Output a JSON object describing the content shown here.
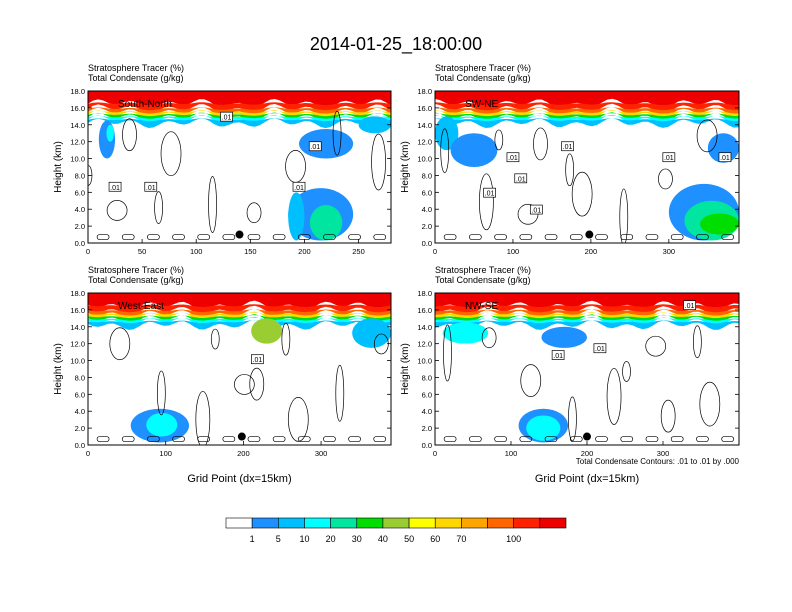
{
  "figure": {
    "title": "2014-01-25_18:00:00",
    "footnote": "Total Condensate Contours: .01 to .01 by .000"
  },
  "colorbar": {
    "colors": [
      "#ffffff",
      "#1e90ff",
      "#00bfff",
      "#00ffff",
      "#00e5a0",
      "#00dd00",
      "#9acd32",
      "#ffff00",
      "#ffd700",
      "#ffa500",
      "#ff6600",
      "#ff2200",
      "#ee0000"
    ],
    "labels": [
      "1",
      "5",
      "10",
      "20",
      "30",
      "40",
      "50",
      "60",
      "70",
      "100"
    ]
  },
  "chart_data": [
    {
      "type": "heatmap",
      "panel_label": "South-North",
      "subtitle_lines": [
        "Stratosphere Tracer   (%)",
        "Total Condensate   (g/kg)"
      ],
      "ylabel": "Height (km)",
      "xlabel": "",
      "xlim": [
        0,
        280
      ],
      "ylim": [
        0,
        18
      ],
      "x_ticks": [
        "0",
        "50",
        "100",
        "150",
        "200",
        "250"
      ],
      "x_tick_values": [
        0,
        50,
        100,
        150,
        200,
        250
      ],
      "y_ticks": [
        "0.0",
        "2.0",
        "4.0",
        "6.0",
        "8.0",
        "10.0",
        "12.0",
        "14.0",
        "16.0",
        "18.0"
      ],
      "contour_labels": [
        ".01",
        ".01",
        ".01",
        ".01",
        ".01"
      ],
      "contour_label_pos": [
        [
          128,
          14.9
        ],
        [
          25,
          6.6
        ],
        [
          58,
          6.6
        ],
        [
          210,
          11.4
        ],
        [
          195,
          6.6
        ]
      ],
      "marker_x": 140,
      "marker_y": 1.0,
      "tropopause_km": 14.6,
      "blobs": [
        {
          "x": [
            10,
            25
          ],
          "y": [
            10,
            14.5
          ],
          "level": 1
        },
        {
          "x": [
            17,
            24
          ],
          "y": [
            12,
            14
          ],
          "level": 3
        },
        {
          "x": [
            185,
            245
          ],
          "y": [
            0.3,
            6.5
          ],
          "level": 1
        },
        {
          "x": [
            205,
            235
          ],
          "y": [
            0.3,
            4.5
          ],
          "level": 4
        },
        {
          "x": [
            185,
            200
          ],
          "y": [
            0.3,
            6.0
          ],
          "level": 2
        },
        {
          "x": [
            195,
            245
          ],
          "y": [
            10,
            13.5
          ],
          "level": 1
        },
        {
          "x": [
            250,
            280
          ],
          "y": [
            13,
            15
          ],
          "level": 2
        }
      ]
    },
    {
      "type": "heatmap",
      "panel_label": "SW-NE",
      "subtitle_lines": [
        "Stratosphere Tracer   (%)",
        "Total Condensate   (g/kg)"
      ],
      "ylabel": "Height (km)",
      "xlabel": "",
      "xlim": [
        0,
        390
      ],
      "ylim": [
        0,
        18
      ],
      "x_ticks": [
        "0",
        "100",
        "200",
        "300"
      ],
      "x_tick_values": [
        0,
        100,
        200,
        300
      ],
      "y_ticks": [
        "0.0",
        "2.0",
        "4.0",
        "6.0",
        "8.0",
        "10.0",
        "12.0",
        "14.0",
        "16.0",
        "18.0"
      ],
      "contour_labels": [
        ".01",
        ".01",
        ".01",
        ".01",
        ".01",
        ".01",
        ".01"
      ],
      "contour_label_pos": [
        [
          100,
          10.1
        ],
        [
          170,
          11.4
        ],
        [
          300,
          10.1
        ],
        [
          372,
          10.1
        ],
        [
          110,
          7.6
        ],
        [
          70,
          5.9
        ],
        [
          130,
          3.9
        ]
      ],
      "marker_x": 198,
      "marker_y": 1.0,
      "tropopause_km": 14.6,
      "blobs": [
        {
          "x": [
            0,
            30
          ],
          "y": [
            11,
            15
          ],
          "level": 2
        },
        {
          "x": [
            20,
            80
          ],
          "y": [
            9,
            13
          ],
          "level": 1
        },
        {
          "x": [
            300,
            390
          ],
          "y": [
            0.3,
            7
          ],
          "level": 1
        },
        {
          "x": [
            320,
            390
          ],
          "y": [
            0.3,
            5
          ],
          "level": 4
        },
        {
          "x": [
            340,
            390
          ],
          "y": [
            1,
            3.5
          ],
          "level": 5
        },
        {
          "x": [
            350,
            390
          ],
          "y": [
            9.5,
            13
          ],
          "level": 1
        }
      ]
    },
    {
      "type": "heatmap",
      "panel_label": "West-East",
      "subtitle_lines": [
        "Stratosphere Tracer   (%)",
        "Total Condensate   (g/kg)"
      ],
      "ylabel": "Height (km)",
      "xlabel": "Grid Point (dx=15km)",
      "xlim": [
        0,
        390
      ],
      "ylim": [
        0,
        18
      ],
      "x_ticks": [
        "0",
        "100",
        "200",
        "300"
      ],
      "x_tick_values": [
        0,
        100,
        200,
        300
      ],
      "y_ticks": [
        "0.0",
        "2.0",
        "4.0",
        "6.0",
        "8.0",
        "10.0",
        "12.0",
        "14.0",
        "16.0",
        "18.0"
      ],
      "contour_labels": [
        ".01"
      ],
      "contour_label_pos": [
        [
          218,
          10.1
        ]
      ],
      "marker_x": 198,
      "marker_y": 1.0,
      "tropopause_km": 14.6,
      "blobs": [
        {
          "x": [
            55,
            130
          ],
          "y": [
            0.3,
            4.3
          ],
          "level": 1
        },
        {
          "x": [
            75,
            115
          ],
          "y": [
            1,
            3.8
          ],
          "level": 3
        },
        {
          "x": [
            210,
            250
          ],
          "y": [
            12,
            15
          ],
          "level": 6
        },
        {
          "x": [
            340,
            390
          ],
          "y": [
            11.5,
            15
          ],
          "level": 2
        }
      ]
    },
    {
      "type": "heatmap",
      "panel_label": "NW-SE",
      "subtitle_lines": [
        "Stratosphere Tracer   (%)",
        "Total Condensate   (g/kg)"
      ],
      "ylabel": "Height (km)",
      "xlabel": "Grid Point (dx=15km)",
      "xlim": [
        0,
        400
      ],
      "ylim": [
        0,
        18
      ],
      "x_ticks": [
        "0",
        "100",
        "200",
        "300"
      ],
      "x_tick_values": [
        0,
        100,
        200,
        300
      ],
      "y_ticks": [
        "0.0",
        "2.0",
        "4.0",
        "6.0",
        "8.0",
        "10.0",
        "12.0",
        "14.0",
        "16.0",
        "18.0"
      ],
      "contour_labels": [
        ".01",
        ".01",
        ".01"
      ],
      "contour_label_pos": [
        [
          162,
          10.6
        ],
        [
          217,
          11.4
        ],
        [
          335,
          16.5
        ]
      ],
      "marker_x": 200,
      "marker_y": 1.0,
      "tropopause_km": 14.6,
      "blobs": [
        {
          "x": [
            110,
            175
          ],
          "y": [
            0.3,
            4.3
          ],
          "level": 1
        },
        {
          "x": [
            120,
            165
          ],
          "y": [
            0.5,
            3.5
          ],
          "level": 3
        },
        {
          "x": [
            10,
            70
          ],
          "y": [
            12,
            14.5
          ],
          "level": 3
        },
        {
          "x": [
            140,
            200
          ],
          "y": [
            11.5,
            14
          ],
          "level": 1
        }
      ]
    }
  ]
}
